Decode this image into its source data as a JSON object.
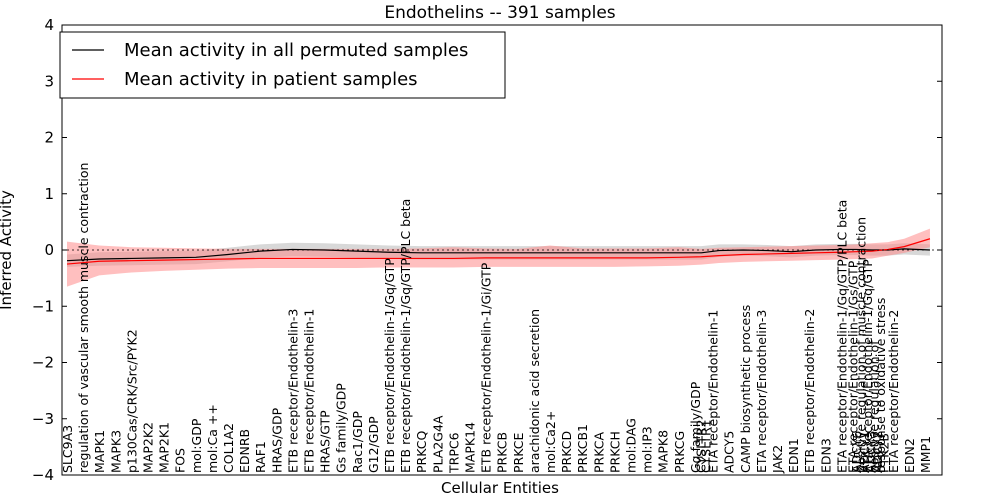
{
  "chart_data": {
    "type": "line",
    "title": "Endothelins -- 391 samples",
    "xlabel": "Cellular Entities",
    "ylabel": "Inferred Activity",
    "ylim": [
      -4,
      4
    ],
    "yticks": [
      -4,
      -3,
      -2,
      -1,
      0,
      1,
      2,
      3,
      4
    ],
    "ytick_labels": [
      "−4",
      "−3",
      "−2",
      "−1",
      "0",
      "1",
      "2",
      "3",
      "4"
    ],
    "reference_line": 0,
    "legend_position": "top-left",
    "categories": [
      "SLC9A3",
      "regulation of vascular smooth muscle contraction",
      "MAPK1",
      "MAPK3",
      "p130Cas/CRK/Src/PYK2",
      "MAP2K2",
      "MAP2K1",
      "FOS",
      "mol:GDP",
      "mol:Ca ++",
      "COL1A2",
      "EDNRB",
      "RAF1",
      "HRAS/GDP",
      "ETB receptor/Endothelin-3",
      "ETB receptor/Endothelin-1",
      "HRAS/GTP",
      "Gs family/GDP",
      "Rac1/GDP",
      "G12/GDP",
      "ETB receptor/Endothelin-1/Gq/GTP",
      "ETB receptor/Endothelin-1/Gq/GTP/PLC beta",
      "PRKCQ",
      "PLA2G4A",
      "TRPC6",
      "MAPK14",
      "ETB receptor/Endothelin-1/Gi/GTP",
      "PRKCB",
      "PRKCE",
      "arachidonic acid secretion",
      "mol:Ca2+",
      "PRKCD",
      "PRKCB1",
      "PRKCA",
      "PRKCH",
      "mol:DAG",
      "mol:IP3",
      "MAPK8",
      "PRKCG",
      "Gq family/GDP",
      "CYSLTR2",
      "CYSLTR1",
      "ETA receptor/Endothelin-1",
      "ADCY5",
      "CAMP biosynthetic process",
      "ETA receptor/Endothelin-3",
      "JAK2",
      "EDN1",
      "ETB receptor/Endothelin-2",
      "EDN3",
      "ETA receptor/Endothelin-1/Gq/GTP/PLC beta",
      "ETA receptor/Endothelin-1/Gs/GTP",
      "ADCY6",
      "positive regulation of muscle contraction",
      "ADCY1",
      "ETA receptor/Endothelin-1/Gq/GTP",
      "ADCY3",
      "positive regulation of",
      "ADCY2",
      "response to oxidative stress",
      "PTK2B",
      "ETA receptor/Endothelin-2",
      "EDN2",
      "MMP1"
    ],
    "label_positions": [
      0,
      1,
      2,
      3,
      4,
      5,
      6,
      7,
      8,
      9,
      10,
      11,
      12,
      13,
      14,
      15,
      16,
      17,
      18,
      19,
      20,
      21,
      22,
      23,
      24,
      25,
      26,
      27,
      28,
      29,
      30,
      31,
      32,
      33,
      34,
      35,
      36,
      37,
      38,
      39,
      39.35,
      39.65,
      40.1,
      41.1,
      42.1,
      43.1,
      44.1,
      45.1,
      46.1,
      47.1,
      48.1,
      48.8,
      49.0,
      49.3,
      49.5,
      49.7,
      49.9,
      50.1,
      50.3,
      50.5,
      50.7,
      51.3,
      52.3,
      53.3
    ],
    "series": [
      {
        "name": "Mean activity in all permuted samples",
        "color": "#000000",
        "band_color": "#a9a9a9",
        "x": [
          0,
          2,
          4,
          6,
          8,
          10,
          12,
          14,
          16,
          18,
          20,
          22,
          24,
          26,
          28,
          30,
          32,
          34,
          36,
          38,
          39.4,
          40.5,
          42,
          43.5,
          45,
          46.5,
          48,
          49,
          50,
          51,
          52,
          53.6
        ],
        "values": [
          -0.19,
          -0.16,
          -0.15,
          -0.14,
          -0.13,
          -0.08,
          -0.02,
          0.01,
          0.0,
          -0.02,
          -0.04,
          -0.05,
          -0.05,
          -0.05,
          -0.05,
          -0.05,
          -0.05,
          -0.05,
          -0.05,
          -0.05,
          -0.05,
          -0.01,
          0.0,
          -0.01,
          -0.03,
          0.0,
          0.01,
          0.01,
          0.0,
          0.0,
          0.02,
          0.0
        ],
        "lower": [
          -0.3,
          -0.28,
          -0.27,
          -0.26,
          -0.25,
          -0.2,
          -0.14,
          -0.11,
          -0.12,
          -0.14,
          -0.16,
          -0.17,
          -0.17,
          -0.17,
          -0.17,
          -0.17,
          -0.17,
          -0.17,
          -0.17,
          -0.17,
          -0.17,
          -0.12,
          -0.1,
          -0.11,
          -0.13,
          -0.1,
          -0.09,
          -0.09,
          -0.1,
          -0.1,
          -0.08,
          -0.1
        ],
        "upper": [
          -0.08,
          -0.04,
          -0.03,
          -0.02,
          -0.01,
          0.04,
          0.1,
          0.13,
          0.12,
          0.1,
          0.08,
          0.07,
          0.07,
          0.07,
          0.07,
          0.07,
          0.07,
          0.07,
          0.07,
          0.07,
          0.07,
          0.1,
          0.1,
          0.09,
          0.07,
          0.1,
          0.11,
          0.11,
          0.1,
          0.1,
          0.12,
          0.1
        ]
      },
      {
        "name": "Mean activity in patient samples",
        "color": "#ff0000",
        "band_color": "#ff8a8a",
        "x": [
          0,
          2,
          4,
          6,
          8,
          10,
          12,
          14,
          16,
          18,
          20,
          22,
          24,
          26,
          28,
          30,
          32,
          34,
          36,
          38,
          39.4,
          40.5,
          42,
          43.5,
          45,
          46.5,
          48,
          49,
          50,
          51,
          52,
          53.6
        ],
        "values": [
          -0.25,
          -0.2,
          -0.19,
          -0.18,
          -0.17,
          -0.16,
          -0.15,
          -0.15,
          -0.15,
          -0.15,
          -0.15,
          -0.15,
          -0.15,
          -0.14,
          -0.14,
          -0.14,
          -0.14,
          -0.14,
          -0.14,
          -0.13,
          -0.12,
          -0.1,
          -0.08,
          -0.07,
          -0.06,
          -0.05,
          -0.04,
          -0.03,
          -0.02,
          0.01,
          0.06,
          0.2
        ],
        "lower": [
          -0.65,
          -0.45,
          -0.4,
          -0.37,
          -0.35,
          -0.33,
          -0.32,
          -0.32,
          -0.32,
          -0.32,
          -0.31,
          -0.31,
          -0.31,
          -0.3,
          -0.3,
          -0.3,
          -0.3,
          -0.3,
          -0.29,
          -0.28,
          -0.26,
          -0.23,
          -0.21,
          -0.2,
          -0.19,
          -0.18,
          -0.17,
          -0.16,
          -0.15,
          -0.1,
          -0.05,
          0.05
        ],
        "upper": [
          0.15,
          0.08,
          0.05,
          0.04,
          0.03,
          0.02,
          0.02,
          0.02,
          0.02,
          0.02,
          0.02,
          0.03,
          0.05,
          0.03,
          0.02,
          0.08,
          0.03,
          0.03,
          0.03,
          0.05,
          0.02,
          0.04,
          0.05,
          0.06,
          0.07,
          0.08,
          0.09,
          0.1,
          0.12,
          0.14,
          0.2,
          0.38
        ]
      }
    ]
  }
}
